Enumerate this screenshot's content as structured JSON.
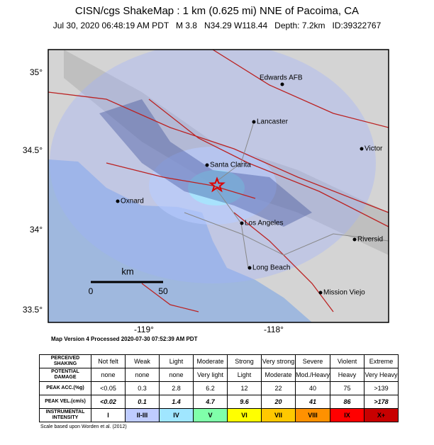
{
  "header": {
    "title": "CISN/cgs ShakeMap : 1 km (0.625 mi) NNE of Pacoima, CA",
    "subtitle": "Jul 30, 2020 06:48:19 AM PDT   M 3.8   N34.29 W118.44   Depth: 7.2km   ID:39322767"
  },
  "map": {
    "lat_labels": [
      "35°",
      "34.5°",
      "34°",
      "33.5°"
    ],
    "lon_labels": [
      "-119°",
      "-118°"
    ],
    "places": [
      "Edwards AFB",
      "Lancaster",
      "Victor",
      "Santa Clarita",
      "Oxnard",
      "Los Angeles",
      "Riversid",
      "Long Beach",
      "Mission Viejo"
    ],
    "scale": {
      "unit": "km",
      "ticks": [
        "0",
        "50"
      ]
    }
  },
  "version": "Map Version 4 Processed 2020-07-30 07:52:39 AM PDT",
  "legend": {
    "rows": [
      {
        "label": "PERCEIVED SHAKING",
        "cells": [
          "Not felt",
          "Weak",
          "Light",
          "Moderate",
          "Strong",
          "Very strong",
          "Severe",
          "Violent",
          "Extreme"
        ]
      },
      {
        "label": "POTENTIAL DAMAGE",
        "cells": [
          "none",
          "none",
          "none",
          "Very light",
          "Light",
          "Moderate",
          "Mod./Heavy",
          "Heavy",
          "Very Heavy"
        ]
      },
      {
        "label": "PEAK ACC.(%g)",
        "cells": [
          "<0.05",
          "0.3",
          "2.8",
          "6.2",
          "12",
          "22",
          "40",
          "75",
          ">139"
        ]
      },
      {
        "label": "PEAK VEL.(cm/s)",
        "cells": [
          "<0.02",
          "0.1",
          "1.4",
          "4.7",
          "9.6",
          "20",
          "41",
          "86",
          ">178"
        ]
      },
      {
        "label": "INSTRUMENTAL INTENSITY",
        "cells": [
          "I",
          "II-III",
          "IV",
          "V",
          "VI",
          "VII",
          "VIII",
          "IX",
          "X+"
        ]
      }
    ],
    "intensity_colors": [
      "#ffffff",
      "#bfccff",
      "#a0e6ff",
      "#80ffaa",
      "#ffff00",
      "#ffc800",
      "#ff9100",
      "#ff0000",
      "#c80000"
    ]
  },
  "footnote": "Scale based upon Worden et al. (2012)"
}
